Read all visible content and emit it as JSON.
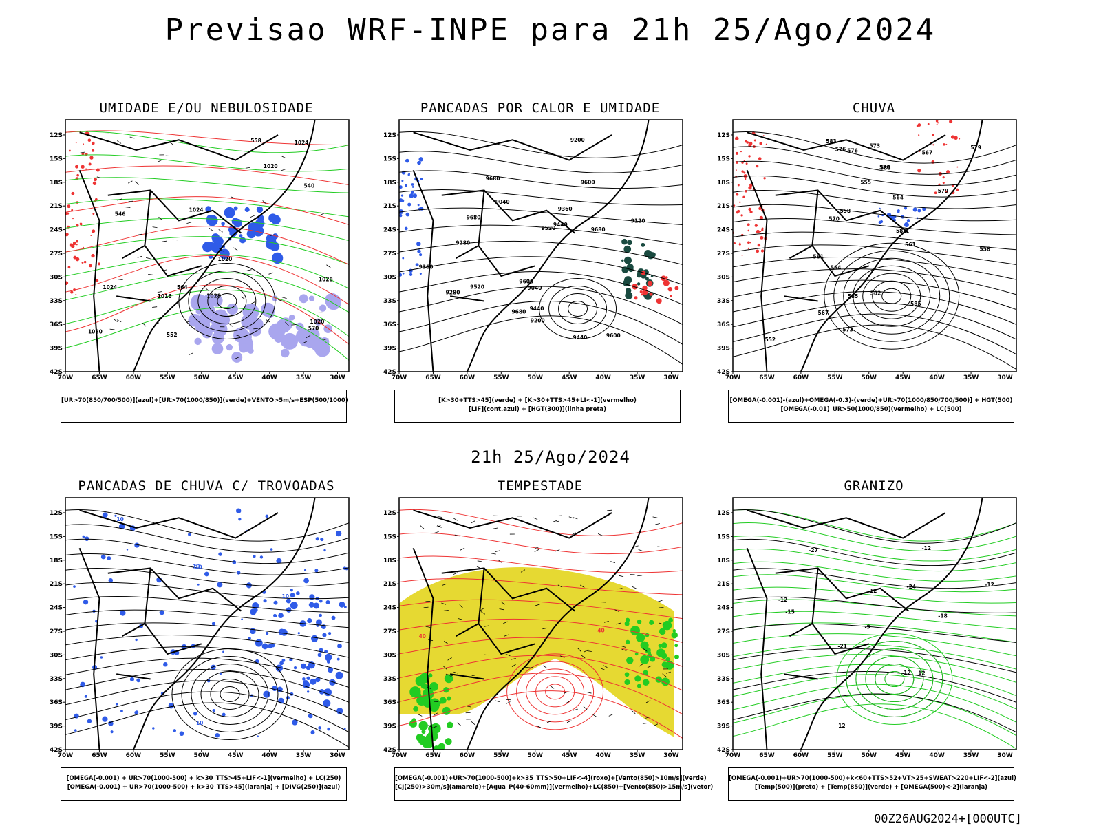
{
  "header": {
    "title": "Previsao WRF-INPE  para 21h 25/Ago/2024",
    "middle_date": "21h 25/Ago/2024",
    "footer": "00Z26AUG2024+[000UTC]"
  },
  "axes": {
    "lat_labels": [
      "12S",
      "15S",
      "18S",
      "21S",
      "24S",
      "27S",
      "30S",
      "33S",
      "36S",
      "39S",
      "42S"
    ],
    "lon_labels": [
      "70W",
      "65W",
      "60W",
      "55W",
      "50W",
      "45W",
      "40W",
      "35W",
      "30W"
    ]
  },
  "colors": {
    "blue": "#2f5be8",
    "green": "#22cc22",
    "red": "#ee3333",
    "yellow": "#e6d932",
    "darkteal": "#1a4a40",
    "lightblue": "#a9a6ee",
    "orange": "#ff9933"
  },
  "panels": [
    {
      "title": "UMIDADE E/OU NEBULOSIDADE",
      "legend": [
        "[UR>70(850/700/500)](azul)+[UR>70(1000/850)](verde)+VENTO>5m/s+ESP(500/1000)"
      ],
      "contour_labels": [
        "1020",
        "1016",
        "1024",
        "1028",
        "1020",
        "1024",
        "1020",
        "1028",
        "1024",
        "1020",
        "570",
        "564",
        "558",
        "552",
        "546",
        "540"
      ]
    },
    {
      "title": "PANCADAS POR CALOR E UMIDADE",
      "legend": [
        "[K>30+TTS>45](verde) + [K>30+TTS>45+LI<-1](vermelho)",
        "[LIF](cont.azul) + [HGT(300)](linha preta)"
      ],
      "contour_labels": [
        "9680",
        "9680",
        "9680",
        "9680",
        "9600",
        "9600",
        "9600",
        "9520",
        "9520",
        "9440",
        "9440",
        "9360",
        "9360",
        "9280",
        "9280",
        "9200",
        "9200",
        "9120",
        "9040",
        "9040",
        "9440"
      ]
    },
    {
      "title": "CHUVA",
      "legend": [
        "[OMEGA(-0.001)-(azul)+OMEGA(-0.3)-(verde)+UR>70(1000/850/700/500)] + HGT(500)",
        "[OMEGA(-0.01)_UR>50(1000/850)(vermelho) + LC(500)"
      ],
      "contour_labels": [
        "588",
        "585",
        "585",
        "582",
        "579",
        "576",
        "573",
        "570",
        "567",
        "564",
        "561",
        "558",
        "555",
        "552",
        "585",
        "583",
        "579",
        "576",
        "573",
        "570",
        "567",
        "564",
        "561",
        "558"
      ]
    },
    {
      "title": "PANCADAS DE CHUVA C/ TROVOADAS",
      "legend": [
        "[OMEGA(-0.001) + UR>70(1000-500) + k>30_TTS>45+LIF<-1](vermelho) + LC(250)",
        "[OMEGA(-0.001) + UR>70(1000-500) + k>30_TTS>45](laranja) + [DIVG(250)](azul)"
      ],
      "contour_labels": [
        "10",
        "10",
        "10",
        "10",
        "10"
      ]
    },
    {
      "title": "TEMPESTADE",
      "legend": [
        "[OMEGA(-0.001)+UR>70(1000-500)+k>35_TTS>50+LIF<-4](roxo)+[Vento(850)>10m/s](verde)",
        "[CJ(250)>30m/s](amarelo)+[Agua_P(40-60mm)](vermelho)+LC(850)+[Vento(850)>15m/s](vetor)"
      ],
      "contour_labels": [
        "40",
        "40"
      ]
    },
    {
      "title": "GRANIZO",
      "legend": [
        "[OMEGA(-0.001)+UR>70(1000-500)+k<60+TTS>52+VT>25+SWEAT>220+LIF<-2](azul)",
        "[Temp(500)](preto) + [Temp(850)](verde) + [OMEGA(500)<-2](laranja)"
      ],
      "contour_labels": [
        "-12",
        "-12",
        "-15",
        "-18",
        "-21",
        "-24",
        "-27",
        "-12",
        "12",
        "12",
        "12",
        "-12",
        "-9"
      ]
    }
  ]
}
